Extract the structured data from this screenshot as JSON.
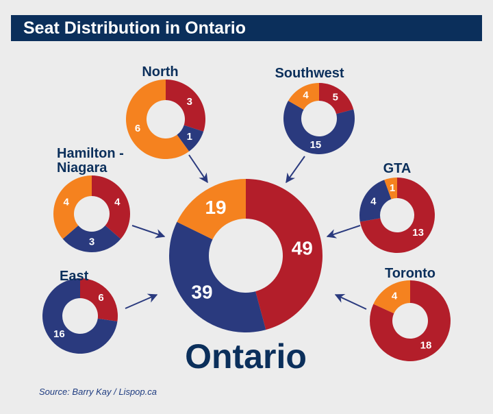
{
  "title": "Seat Distribution in Ontario",
  "source": "Source: Barry Kay / Lispop.ca",
  "colors": {
    "red": "#b31e2a",
    "blue": "#2a3a7e",
    "orange": "#f5821f",
    "label_dark": "#0b2f5b",
    "background": "#ececec"
  },
  "chart_data": {
    "type": "pie",
    "style": "donut",
    "series_order": [
      "red",
      "blue",
      "orange"
    ],
    "charts": [
      {
        "id": "ontario",
        "label": "Ontario",
        "values": {
          "red": 49,
          "blue": 39,
          "orange": 19
        }
      },
      {
        "id": "north",
        "label": "North",
        "values": {
          "red": 3,
          "blue": 1,
          "orange": 6
        }
      },
      {
        "id": "southwest",
        "label": "Southwest",
        "values": {
          "red": 5,
          "blue": 15,
          "orange": 4
        }
      },
      {
        "id": "hamilton-niagara",
        "label": [
          "Hamilton -",
          "Niagara"
        ],
        "values": {
          "red": 4,
          "blue": 3,
          "orange": 4
        }
      },
      {
        "id": "gta",
        "label": "GTA",
        "values": {
          "red": 13,
          "blue": 4,
          "orange": 1
        }
      },
      {
        "id": "east",
        "label": "East",
        "values": {
          "red": 6,
          "blue": 16,
          "orange": 0
        }
      },
      {
        "id": "toronto",
        "label": "Toronto",
        "values": {
          "red": 18,
          "blue": 0,
          "orange": 4
        }
      }
    ]
  }
}
